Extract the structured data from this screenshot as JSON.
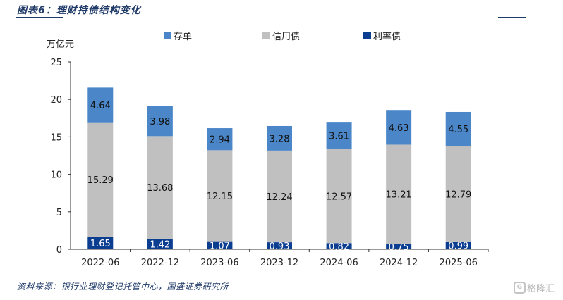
{
  "header": {
    "title": "图表6：理财持债结构变化"
  },
  "footer": {
    "source": "资料来源：银行业理财登记托管中心，国盛证券研究所",
    "watermark": "格隆汇"
  },
  "chart_data": {
    "type": "bar",
    "stacked": true,
    "title": "",
    "ylabel": "万亿元",
    "xlabel": "",
    "ylim": [
      0,
      25
    ],
    "yticks": [
      0,
      5,
      10,
      15,
      20,
      25
    ],
    "categories": [
      "2022-06",
      "2022-12",
      "2023-06",
      "2023-12",
      "2024-06",
      "2024-12",
      "2025-06"
    ],
    "legend_position": "top",
    "grid": false,
    "series": [
      {
        "name": "利率债",
        "color": "#0b3d91",
        "label_color": "#ffffff",
        "values": [
          1.65,
          1.42,
          1.07,
          0.93,
          0.82,
          0.75,
          0.99
        ]
      },
      {
        "name": "信用债",
        "color": "#c0c0c0",
        "label_color": "#111111",
        "values": [
          15.29,
          13.68,
          12.15,
          12.24,
          12.57,
          13.21,
          12.79
        ]
      },
      {
        "name": "存单",
        "color": "#4a86c8",
        "label_color": "#111111",
        "values": [
          4.64,
          3.98,
          2.94,
          3.28,
          3.61,
          4.63,
          4.55
        ]
      }
    ],
    "legend_order": [
      "存单",
      "信用债",
      "利率债"
    ]
  }
}
